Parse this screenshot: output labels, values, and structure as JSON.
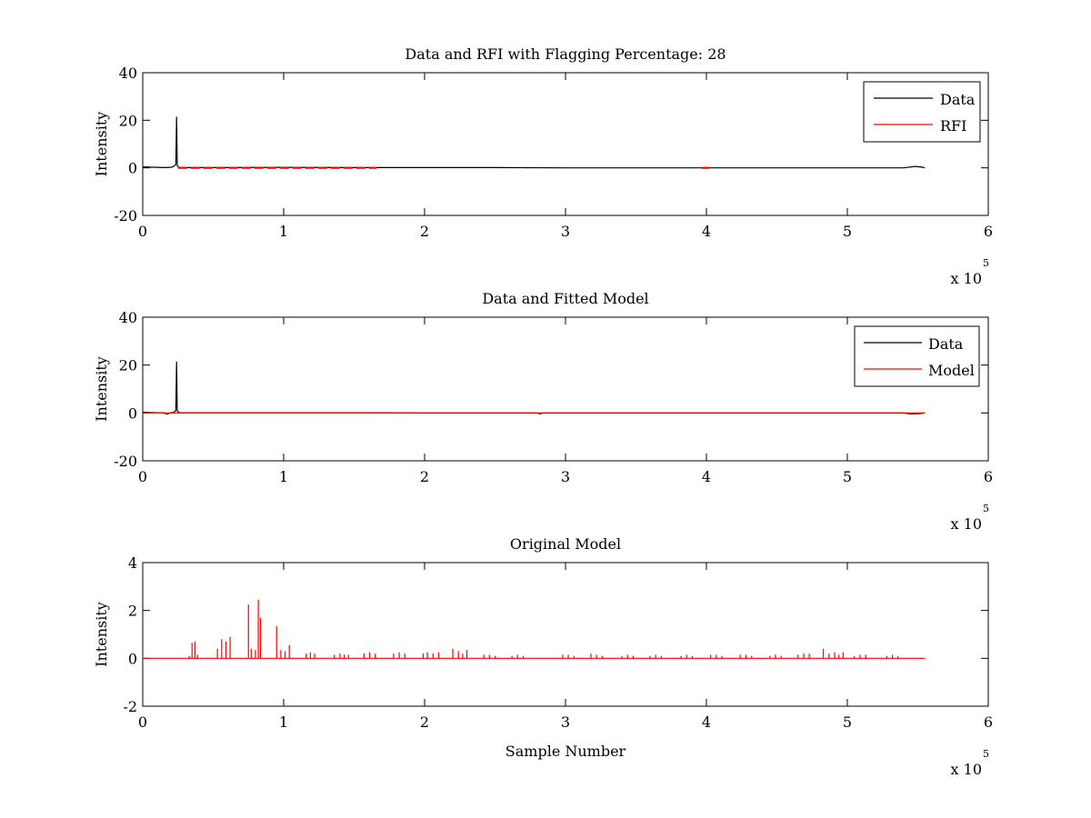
{
  "figure": {
    "background": "#ffffff"
  },
  "chart_data": [
    {
      "type": "line",
      "title": "Data and RFI with Flagging Percentage: 28",
      "xlabel": "",
      "ylabel": "Intensity",
      "xlim": [
        0,
        600000
      ],
      "ylim": [
        -20,
        40
      ],
      "xticks": [
        0,
        100000,
        200000,
        300000,
        400000,
        500000,
        600000
      ],
      "xtick_labels": [
        "0",
        "1",
        "2",
        "3",
        "4",
        "5",
        "6"
      ],
      "yticks": [
        -20,
        0,
        20,
        40
      ],
      "ytick_labels": [
        "-20",
        "0",
        "20",
        "40"
      ],
      "x_multiplier": {
        "base": "x 10",
        "exponent": "5"
      },
      "grid": false,
      "legend_position": "top-right",
      "series": [
        {
          "name": "Data",
          "color": "#000000",
          "x": [
            0,
            10000,
            15000,
            20000,
            22000,
            23500,
            24000,
            24500,
            26000,
            60000,
            100000,
            150000,
            166000,
            200000,
            250000,
            300000,
            350000,
            400000,
            450000,
            500000,
            540000,
            548000,
            553000,
            555000
          ],
          "y": [
            0.4,
            0.2,
            0.1,
            0.2,
            0.6,
            1.5,
            21.5,
            0.8,
            0.1,
            0.1,
            0.2,
            0.1,
            0.1,
            0.1,
            0.1,
            0.0,
            0.0,
            0.0,
            0.0,
            0.0,
            0.0,
            0.6,
            0.3,
            0.0
          ]
        },
        {
          "name": "RFI",
          "color": "#ff0000",
          "segments": [
            {
              "x": [
                25000,
                166000
              ],
              "y": [
                0,
                0
              ]
            },
            {
              "x": [
                397000,
                402000
              ],
              "y": [
                0,
                0
              ]
            }
          ]
        }
      ]
    },
    {
      "type": "line",
      "title": "Data and Fitted Model",
      "xlabel": "",
      "ylabel": "Intensity",
      "xlim": [
        0,
        600000
      ],
      "ylim": [
        -20,
        40
      ],
      "xticks": [
        0,
        100000,
        200000,
        300000,
        400000,
        500000,
        600000
      ],
      "xtick_labels": [
        "0",
        "1",
        "2",
        "3",
        "4",
        "5",
        "6"
      ],
      "yticks": [
        -20,
        0,
        20,
        40
      ],
      "ytick_labels": [
        "-20",
        "0",
        "20",
        "40"
      ],
      "x_multiplier": {
        "base": "x 10",
        "exponent": "5"
      },
      "grid": false,
      "legend_position": "top-right",
      "series": [
        {
          "name": "Data",
          "color": "#000000",
          "x": [
            0,
            10000,
            15000,
            17000,
            20000,
            22000,
            23500,
            24000,
            24500,
            26000,
            60000,
            100000,
            166000,
            200000,
            280000,
            282000,
            284000,
            300000,
            400000,
            540000,
            545000,
            550000,
            555000
          ],
          "y": [
            0.3,
            0.1,
            0.1,
            -0.5,
            0.1,
            0.3,
            1.0,
            21.5,
            0.8,
            0.1,
            0.1,
            0.1,
            0.1,
            0.0,
            0.0,
            -0.4,
            0.0,
            0.0,
            0.0,
            0.0,
            -0.4,
            -0.3,
            0.0
          ]
        },
        {
          "name": "Model",
          "color": "#ff0000",
          "x": [
            0,
            555000
          ],
          "y": [
            0,
            0
          ]
        }
      ]
    },
    {
      "type": "line",
      "title": "Original Model",
      "xlabel": "Sample Number",
      "ylabel": "Intensity",
      "xlim": [
        0,
        600000
      ],
      "ylim": [
        -2,
        4
      ],
      "xticks": [
        0,
        100000,
        200000,
        300000,
        400000,
        500000,
        600000
      ],
      "xtick_labels": [
        "0",
        "1",
        "2",
        "3",
        "4",
        "5",
        "6"
      ],
      "yticks": [
        -2,
        0,
        2,
        4
      ],
      "ytick_labels": [
        "-2",
        "0",
        "2",
        "4"
      ],
      "x_multiplier": {
        "base": "x 10",
        "exponent": "5"
      },
      "grid": false,
      "legend_position": "none",
      "series": [
        {
          "name": "",
          "color": "#ff0000",
          "baseline": {
            "x": [
              0,
              555000
            ],
            "y": 0
          },
          "spikes": [
            [
              33000,
              0.1
            ],
            [
              35000,
              0.65
            ],
            [
              37000,
              0.7
            ],
            [
              39000,
              0.15
            ],
            [
              53000,
              0.4
            ],
            [
              56000,
              0.8
            ],
            [
              59000,
              0.7
            ],
            [
              62000,
              0.9
            ],
            [
              75000,
              2.25
            ],
            [
              77000,
              0.4
            ],
            [
              80000,
              0.35
            ],
            [
              82000,
              2.45
            ],
            [
              83500,
              1.7
            ],
            [
              95000,
              1.35
            ],
            [
              98000,
              0.35
            ],
            [
              101000,
              0.3
            ],
            [
              104000,
              0.55
            ],
            [
              116000,
              0.2
            ],
            [
              119000,
              0.25
            ],
            [
              122000,
              0.2
            ],
            [
              136000,
              0.15
            ],
            [
              140000,
              0.2
            ],
            [
              143000,
              0.15
            ],
            [
              146000,
              0.15
            ],
            [
              157000,
              0.2
            ],
            [
              161000,
              0.25
            ],
            [
              165000,
              0.2
            ],
            [
              178000,
              0.2
            ],
            [
              182000,
              0.25
            ],
            [
              186000,
              0.2
            ],
            [
              199000,
              0.2
            ],
            [
              202000,
              0.25
            ],
            [
              206000,
              0.2
            ],
            [
              210000,
              0.25
            ],
            [
              220000,
              0.4
            ],
            [
              224000,
              0.3
            ],
            [
              227000,
              0.2
            ],
            [
              230000,
              0.35
            ],
            [
              242000,
              0.15
            ],
            [
              246000,
              0.15
            ],
            [
              250000,
              0.1
            ],
            [
              262000,
              0.1
            ],
            [
              266000,
              0.15
            ],
            [
              270000,
              0.1
            ],
            [
              298000,
              0.15
            ],
            [
              302000,
              0.15
            ],
            [
              306000,
              0.1
            ],
            [
              318000,
              0.2
            ],
            [
              322000,
              0.15
            ],
            [
              326000,
              0.1
            ],
            [
              340000,
              0.1
            ],
            [
              344000,
              0.15
            ],
            [
              348000,
              0.1
            ],
            [
              360000,
              0.1
            ],
            [
              364000,
              0.15
            ],
            [
              368000,
              0.1
            ],
            [
              382000,
              0.1
            ],
            [
              386000,
              0.15
            ],
            [
              390000,
              0.1
            ],
            [
              403000,
              0.15
            ],
            [
              407000,
              0.15
            ],
            [
              411000,
              0.1
            ],
            [
              424000,
              0.15
            ],
            [
              428000,
              0.15
            ],
            [
              432000,
              0.1
            ],
            [
              445000,
              0.1
            ],
            [
              449000,
              0.15
            ],
            [
              453000,
              0.1
            ],
            [
              465000,
              0.15
            ],
            [
              469000,
              0.2
            ],
            [
              473000,
              0.2
            ],
            [
              483000,
              0.4
            ],
            [
              487000,
              0.2
            ],
            [
              491000,
              0.25
            ],
            [
              494000,
              0.15
            ],
            [
              497000,
              0.25
            ],
            [
              505000,
              0.1
            ],
            [
              509000,
              0.15
            ],
            [
              513000,
              0.15
            ],
            [
              528000,
              0.1
            ],
            [
              532000,
              0.15
            ],
            [
              536000,
              0.1
            ]
          ]
        }
      ]
    }
  ]
}
